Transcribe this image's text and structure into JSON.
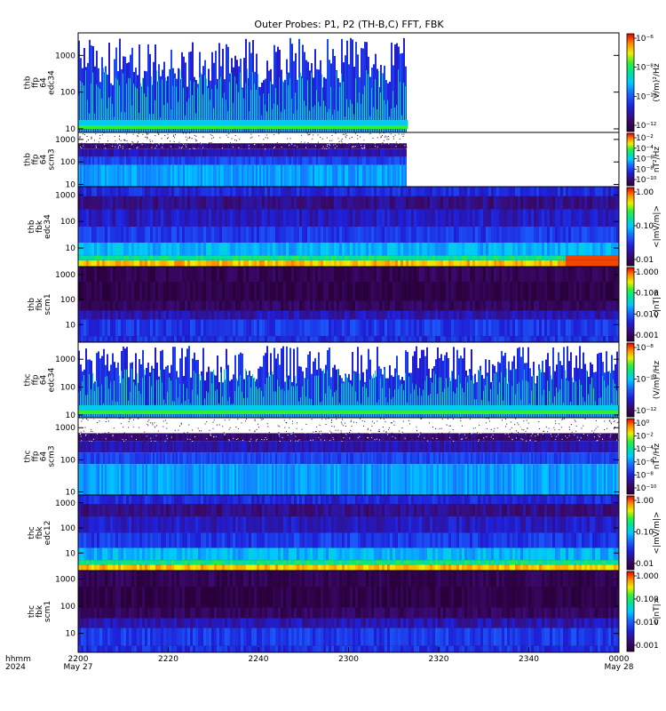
{
  "chart_data": {
    "type": "heatmap",
    "title": "Outer Probes: P1, P2 (TH-B,C) FFT, FBK",
    "time_axis": {
      "corner_label": [
        "hhmm",
        "2024"
      ],
      "ticks": [
        {
          "label": "2200",
          "date": "May 27"
        },
        {
          "label": "2220",
          "date": ""
        },
        {
          "label": "2240",
          "date": ""
        },
        {
          "label": "2300",
          "date": ""
        },
        {
          "label": "2320",
          "date": ""
        },
        {
          "label": "2340",
          "date": ""
        },
        {
          "label": "0000",
          "date": "May 28"
        }
      ],
      "range": [
        "2024-05-27 22:00",
        "2024-05-28 00:00"
      ]
    },
    "panels": [
      {
        "id": "thb-ffp-e34",
        "ylabel": [
          "thb",
          "ffp",
          "64",
          "edc34"
        ],
        "kind": "ffp_e",
        "data_end_fraction": 0.61,
        "yticks": [
          "10",
          "100",
          "1000"
        ],
        "ylim": [
          8,
          4096
        ],
        "colorbar": {
          "label": "(V/m)²/Hz",
          "scale": "log",
          "ticks": [
            "10⁻⁶",
            "10⁻⁸",
            "10⁻¹⁰",
            "10⁻¹²"
          ]
        }
      },
      {
        "id": "thb-ffp-scm3",
        "ylabel": [
          "thb",
          "ffp",
          "64",
          "scm3"
        ],
        "kind": "ffp_b",
        "data_end_fraction": 0.61,
        "yticks": [
          "10",
          "100",
          "1000"
        ],
        "ylim": [
          8,
          2048
        ],
        "colorbar": {
          "label": "nT²/Hz",
          "scale": "log",
          "ticks": [
            "10⁻²",
            "10⁻⁴",
            "10⁻⁶",
            "10⁻⁸",
            "10⁻¹⁰"
          ]
        }
      },
      {
        "id": "thb-fbk-edc34",
        "ylabel": [
          "thb",
          "fbk",
          "edc34"
        ],
        "kind": "fbk_e_b",
        "data_end_fraction": 1.0,
        "yticks": [
          "10",
          "100",
          "1000"
        ],
        "ylim": [
          2,
          2048
        ],
        "colorbar": {
          "label": "<|mV/m|>",
          "scale": "log",
          "ticks": [
            "1.00",
            "0.10",
            "0.01"
          ]
        }
      },
      {
        "id": "thb-fbk-scm1",
        "ylabel": [
          "thb",
          "fbk",
          "scm1"
        ],
        "kind": "fbk_b",
        "data_end_fraction": 1.0,
        "yticks": [
          "10",
          "100",
          "1000"
        ],
        "ylim": [
          2,
          2048
        ],
        "colorbar": {
          "label": "<|nT|>",
          "scale": "log",
          "ticks": [
            "1.000",
            "0.100",
            "0.010",
            "0.001"
          ]
        }
      },
      {
        "id": "thc-ffp-e34",
        "ylabel": [
          "thc",
          "ffp",
          "64",
          "edc34"
        ],
        "kind": "ffp_e",
        "data_end_fraction": 1.0,
        "yticks": [
          "10",
          "100",
          "1000"
        ],
        "ylim": [
          8,
          4096
        ],
        "colorbar": {
          "label": "(V/m)²/Hz",
          "scale": "log",
          "ticks": [
            "10⁻⁸",
            "10⁻¹⁰",
            "10⁻¹²"
          ]
        }
      },
      {
        "id": "thc-ffp-scm3",
        "ylabel": [
          "thc",
          "ffp",
          "64",
          "scm3"
        ],
        "kind": "ffp_b",
        "data_end_fraction": 1.0,
        "yticks": [
          "10",
          "100",
          "1000"
        ],
        "ylim": [
          8,
          2048
        ],
        "colorbar": {
          "label": "nT²/Hz",
          "scale": "log",
          "ticks": [
            "10⁰",
            "10⁻²",
            "10⁻⁴",
            "10⁻⁶",
            "10⁻⁸",
            "10⁻¹⁰"
          ]
        }
      },
      {
        "id": "thc-fbk-edc12",
        "ylabel": [
          "thc",
          "fbk",
          "edc12"
        ],
        "kind": "fbk_e_c",
        "data_end_fraction": 1.0,
        "yticks": [
          "10",
          "100",
          "1000"
        ],
        "ylim": [
          2,
          2048
        ],
        "colorbar": {
          "label": "<|mV/m|>",
          "scale": "log",
          "ticks": [
            "1.00",
            "0.10",
            "0.01"
          ]
        }
      },
      {
        "id": "thc-fbk-scm1",
        "ylabel": [
          "thc",
          "fbk",
          "scm1"
        ],
        "kind": "fbk_b",
        "data_end_fraction": 1.0,
        "yticks": [
          "10",
          "100",
          "1000"
        ],
        "ylim": [
          2,
          2048
        ],
        "colorbar": {
          "label": "<|nT|>",
          "scale": "log",
          "ticks": [
            "1.000",
            "0.100",
            "0.010",
            "0.001"
          ]
        }
      }
    ]
  }
}
